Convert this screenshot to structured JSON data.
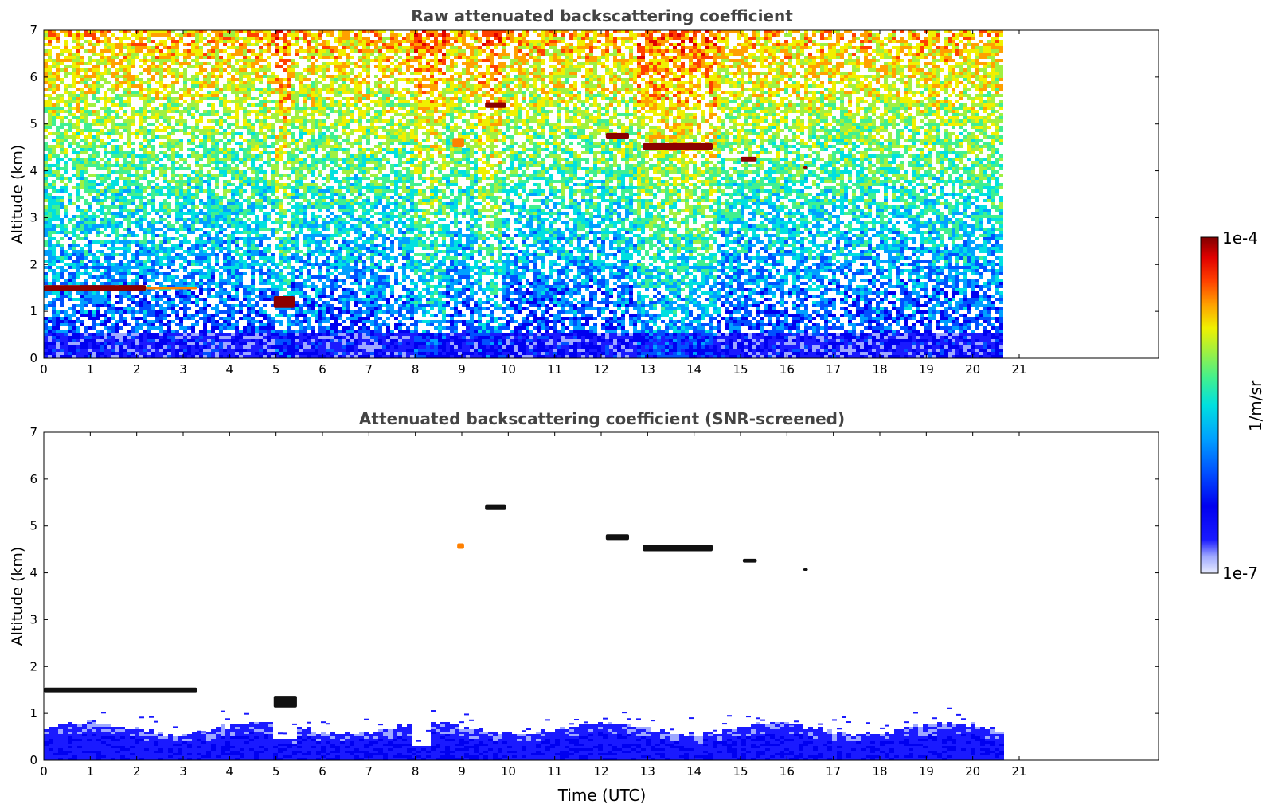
{
  "chart_data": [
    {
      "type": "heatmap",
      "title": "Raw attenuated backscattering coefficient",
      "xlabel": "",
      "ylabel": "Altitude (km)",
      "xlim": [
        0,
        24
      ],
      "ylim": [
        0,
        7
      ],
      "x_ticks": [
        "0",
        "1",
        "2",
        "3",
        "4",
        "5",
        "6",
        "7",
        "8",
        "9",
        "10",
        "11",
        "12",
        "13",
        "14",
        "15",
        "16",
        "17",
        "18",
        "19",
        "20",
        "21"
      ],
      "y_ticks": [
        "0",
        "1",
        "2",
        "3",
        "4",
        "5",
        "6",
        "7"
      ],
      "data_time_range": [
        0,
        20.6
      ],
      "colorscale": "jet",
      "color_scale_type": "log",
      "features": [
        {
          "kind": "cloud_layer",
          "t_start": 0.0,
          "t_end": 2.2,
          "altitude_km": 1.5,
          "thickness_km": 0.12,
          "intensity": "1e-4"
        },
        {
          "kind": "cloud_layer",
          "t_start": 2.2,
          "t_end": 3.3,
          "altitude_km": 1.5,
          "thickness_km": 0.06,
          "intensity": "5e-5"
        },
        {
          "kind": "cloud_patch",
          "t_start": 4.95,
          "t_end": 5.4,
          "altitude_km": 1.2,
          "thickness_km": 0.25,
          "intensity": "1e-4"
        },
        {
          "kind": "cloud_patch",
          "t_start": 8.8,
          "t_end": 9.05,
          "altitude_km": 4.6,
          "thickness_km": 0.2,
          "intensity": "5e-5"
        },
        {
          "kind": "cloud_patch",
          "t_start": 9.5,
          "t_end": 9.95,
          "altitude_km": 5.4,
          "thickness_km": 0.12,
          "intensity": "1e-4"
        },
        {
          "kind": "cloud_patch",
          "t_start": 12.1,
          "t_end": 12.6,
          "altitude_km": 4.75,
          "thickness_km": 0.12,
          "intensity": "1e-4"
        },
        {
          "kind": "cloud_patch",
          "t_start": 12.9,
          "t_end": 14.4,
          "altitude_km": 4.52,
          "thickness_km": 0.14,
          "intensity": "1e-4"
        },
        {
          "kind": "cloud_patch",
          "t_start": 15.0,
          "t_end": 15.35,
          "altitude_km": 4.25,
          "thickness_km": 0.1,
          "intensity": "1e-4"
        },
        {
          "kind": "cloud_patch",
          "t_start": 16.35,
          "t_end": 16.45,
          "altitude_km": 4.07,
          "thickness_km": 0.05,
          "intensity": "1e-4"
        }
      ]
    },
    {
      "type": "heatmap",
      "title": "Attenuated backscattering coefficient (SNR-screened)",
      "xlabel": "Time (UTC)",
      "ylabel": "Altitude (km)",
      "xlim": [
        0,
        24
      ],
      "ylim": [
        0,
        7
      ],
      "x_ticks": [
        "0",
        "1",
        "2",
        "3",
        "4",
        "5",
        "6",
        "7",
        "8",
        "9",
        "10",
        "11",
        "12",
        "13",
        "14",
        "15",
        "16",
        "17",
        "18",
        "19",
        "20",
        "21"
      ],
      "y_ticks": [
        "0",
        "1",
        "2",
        "3",
        "4",
        "5",
        "6",
        "7"
      ],
      "data_time_range": [
        0,
        20.6
      ],
      "colorscale": "jet",
      "color_scale_type": "log",
      "features": [
        {
          "kind": "cloud_layer",
          "t_start": 0.0,
          "t_end": 3.3,
          "altitude_km": 1.5,
          "thickness_km": 0.1,
          "intensity": "saturated"
        },
        {
          "kind": "cloud_patch",
          "t_start": 4.95,
          "t_end": 5.45,
          "altitude_km": 1.25,
          "thickness_km": 0.25,
          "intensity": "saturated"
        },
        {
          "kind": "cloud_patch",
          "t_start": 8.9,
          "t_end": 9.05,
          "altitude_km": 4.57,
          "thickness_km": 0.12,
          "intensity": "5e-5"
        },
        {
          "kind": "cloud_patch",
          "t_start": 9.5,
          "t_end": 9.95,
          "altitude_km": 5.4,
          "thickness_km": 0.12,
          "intensity": "saturated"
        },
        {
          "kind": "cloud_patch",
          "t_start": 12.1,
          "t_end": 12.6,
          "altitude_km": 4.76,
          "thickness_km": 0.12,
          "intensity": "saturated"
        },
        {
          "kind": "cloud_patch",
          "t_start": 12.9,
          "t_end": 14.4,
          "altitude_km": 4.53,
          "thickness_km": 0.14,
          "intensity": "saturated"
        },
        {
          "kind": "cloud_patch",
          "t_start": 15.05,
          "t_end": 15.35,
          "altitude_km": 4.26,
          "thickness_km": 0.08,
          "intensity": "saturated"
        },
        {
          "kind": "cloud_patch",
          "t_start": 16.35,
          "t_end": 16.45,
          "altitude_km": 4.07,
          "thickness_km": 0.05,
          "intensity": "saturated"
        },
        {
          "kind": "boundary_layer",
          "t_start": 0.0,
          "t_end": 20.6,
          "top_km_typical": 0.6
        }
      ]
    }
  ],
  "colorbar": {
    "label": "1/m/sr",
    "max_label": "1e-4",
    "min_label": "1e-7",
    "scale": "log",
    "range": [
      1e-07,
      0.0001
    ],
    "colors": [
      "#e8ecff",
      "#9ea8ff",
      "#1a1aff",
      "#0000f0",
      "#0050ff",
      "#00a0ff",
      "#00e0e0",
      "#40f090",
      "#a0f040",
      "#f0f000",
      "#ffa000",
      "#ff4000",
      "#e00000",
      "#800000"
    ]
  }
}
